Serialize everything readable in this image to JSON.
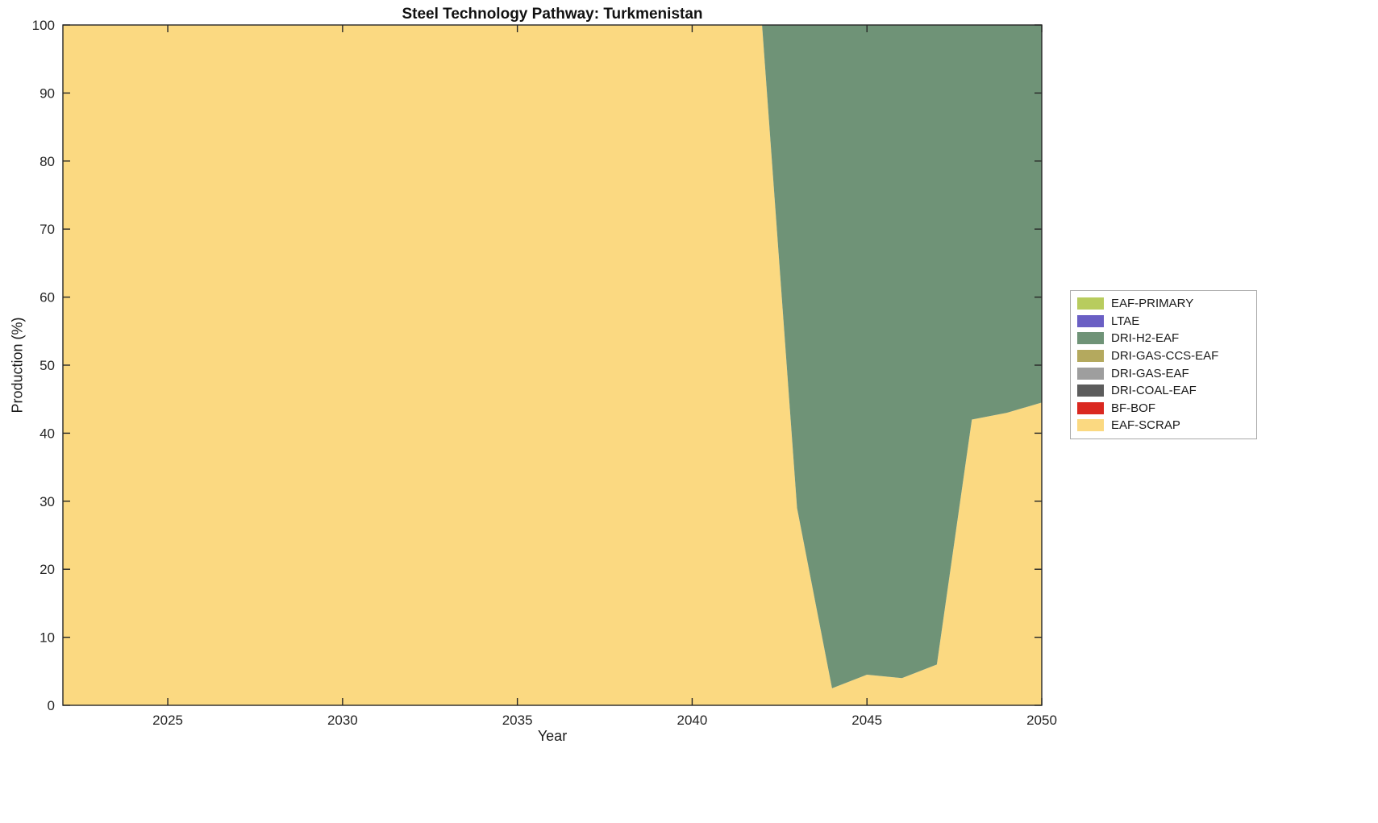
{
  "chart_data": {
    "type": "area",
    "stacked": true,
    "title": "Steel Technology Pathway: Turkmenistan",
    "xlabel": "Year",
    "ylabel": "Production (%)",
    "xlim": [
      2022,
      2050
    ],
    "ylim": [
      0,
      100
    ],
    "x_ticks": [
      2025,
      2030,
      2035,
      2040,
      2045,
      2050
    ],
    "y_ticks": [
      0,
      10,
      20,
      30,
      40,
      50,
      60,
      70,
      80,
      90,
      100
    ],
    "grid": false,
    "legend_position": "outside-right",
    "axis_color": "#262626",
    "background": "#ffffff",
    "stack_note": "bottom-to-top stacking is the reverse of the legend order",
    "x": [
      2022,
      2023,
      2024,
      2025,
      2026,
      2027,
      2028,
      2029,
      2030,
      2031,
      2032,
      2033,
      2034,
      2035,
      2036,
      2037,
      2038,
      2039,
      2040,
      2041,
      2042,
      2043,
      2044,
      2045,
      2046,
      2047,
      2048,
      2049,
      2050
    ],
    "series": [
      {
        "name": "EAF-PRIMARY",
        "color": "#b8cc5e",
        "values": [
          0,
          0,
          0,
          0,
          0,
          0,
          0,
          0,
          0,
          0,
          0,
          0,
          0,
          0,
          0,
          0,
          0,
          0,
          0,
          0,
          0,
          0,
          0,
          0,
          0,
          0,
          0,
          0,
          0
        ]
      },
      {
        "name": "LTAE",
        "color": "#6a5fc4",
        "values": [
          0,
          0,
          0,
          0,
          0,
          0,
          0,
          0,
          0,
          0,
          0,
          0,
          0,
          0,
          0,
          0,
          0,
          0,
          0,
          0,
          0,
          0,
          0,
          0,
          0,
          0,
          0,
          0,
          0
        ]
      },
      {
        "name": "DRI-H2-EAF",
        "color": "#6f9377",
        "values": [
          0,
          0,
          0,
          0,
          0,
          0,
          0,
          0,
          0,
          0,
          0,
          0,
          0,
          0,
          0,
          0,
          0,
          0,
          0,
          0,
          0,
          71,
          97.5,
          95.5,
          96,
          94,
          58,
          57,
          55.5
        ]
      },
      {
        "name": "DRI-GAS-CCS-EAF",
        "color": "#b4a95e",
        "values": [
          0,
          0,
          0,
          0,
          0,
          0,
          0,
          0,
          0,
          0,
          0,
          0,
          0,
          0,
          0,
          0,
          0,
          0,
          0,
          0,
          0,
          0,
          0,
          0,
          0,
          0,
          0,
          0,
          0
        ]
      },
      {
        "name": "DRI-GAS-EAF",
        "color": "#9e9e9e",
        "values": [
          0,
          0,
          0,
          0,
          0,
          0,
          0,
          0,
          0,
          0,
          0,
          0,
          0,
          0,
          0,
          0,
          0,
          0,
          0,
          0,
          0,
          0,
          0,
          0,
          0,
          0,
          0,
          0,
          0
        ]
      },
      {
        "name": "DRI-COAL-EAF",
        "color": "#5c5c5c",
        "values": [
          0,
          0,
          0,
          0,
          0,
          0,
          0,
          0,
          0,
          0,
          0,
          0,
          0,
          0,
          0,
          0,
          0,
          0,
          0,
          0,
          0,
          0,
          0,
          0,
          0,
          0,
          0,
          0,
          0
        ]
      },
      {
        "name": "BF-BOF",
        "color": "#da2820",
        "values": [
          0,
          0,
          0,
          0,
          0,
          0,
          0,
          0,
          0,
          0,
          0,
          0,
          0,
          0,
          0,
          0,
          0,
          0,
          0,
          0,
          0,
          0,
          0,
          0,
          0,
          0,
          0,
          0,
          0
        ]
      },
      {
        "name": "EAF-SCRAP",
        "color": "#fbd981",
        "values": [
          100,
          100,
          100,
          100,
          100,
          100,
          100,
          100,
          100,
          100,
          100,
          100,
          100,
          100,
          100,
          100,
          100,
          100,
          100,
          100,
          100,
          29,
          2.5,
          4.5,
          4,
          6,
          42,
          43,
          44.5
        ]
      }
    ]
  }
}
